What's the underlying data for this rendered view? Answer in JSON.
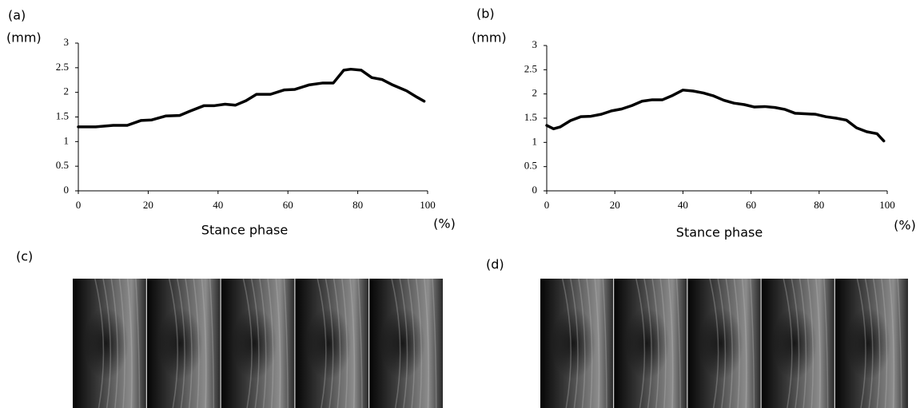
{
  "chart_data": [
    {
      "type": "line",
      "panel_label": "(a)",
      "y_unit": "(mm)",
      "x_unit": "(%)",
      "x_label": "Stance phase",
      "color": "#000000",
      "x": [
        0,
        5,
        10,
        14,
        18,
        21,
        25,
        29,
        32,
        36,
        39,
        42,
        45,
        48,
        51,
        55,
        59,
        62,
        66,
        70,
        73,
        76,
        78,
        81,
        84,
        87,
        90,
        94,
        97,
        99
      ],
      "values": [
        1.3,
        1.3,
        1.33,
        1.33,
        1.43,
        1.44,
        1.52,
        1.53,
        1.62,
        1.73,
        1.73,
        1.76,
        1.74,
        1.83,
        1.96,
        1.96,
        2.05,
        2.06,
        2.15,
        2.19,
        2.19,
        2.45,
        2.47,
        2.45,
        2.3,
        2.26,
        2.15,
        2.03,
        1.9,
        1.82
      ],
      "xlim": [
        0,
        100
      ],
      "xticks": [
        0,
        20,
        40,
        60,
        80,
        100
      ],
      "ylim": [
        0,
        3
      ],
      "yticks": [
        0,
        0.5,
        1,
        1.5,
        2,
        2.5,
        3
      ],
      "grid": false
    },
    {
      "type": "line",
      "panel_label": "(b)",
      "y_unit": "(mm)",
      "x_unit": "(%)",
      "x_label": "Stance phase",
      "color": "#000000",
      "x": [
        0,
        2,
        4,
        7,
        10,
        13,
        16,
        19,
        22,
        25,
        28,
        31,
        34,
        37,
        40,
        43,
        46,
        49,
        52,
        55,
        58,
        61,
        64,
        67,
        70,
        73,
        76,
        79,
        82,
        85,
        88,
        91,
        94,
        97,
        99
      ],
      "values": [
        1.35,
        1.28,
        1.32,
        1.45,
        1.53,
        1.54,
        1.58,
        1.65,
        1.69,
        1.76,
        1.85,
        1.88,
        1.88,
        1.97,
        2.08,
        2.06,
        2.02,
        1.96,
        1.87,
        1.81,
        1.78,
        1.73,
        1.74,
        1.72,
        1.68,
        1.6,
        1.59,
        1.58,
        1.53,
        1.5,
        1.46,
        1.3,
        1.22,
        1.18,
        1.03
      ],
      "xlim": [
        0,
        100
      ],
      "xticks": [
        0,
        20,
        40,
        60,
        80,
        100
      ],
      "ylim": [
        0,
        3
      ],
      "yticks": [
        0,
        0.5,
        1,
        1.5,
        2,
        2.5,
        3
      ],
      "grid": false
    }
  ],
  "image_panels": [
    {
      "label": "(c)"
    },
    {
      "label": "(d)"
    }
  ]
}
